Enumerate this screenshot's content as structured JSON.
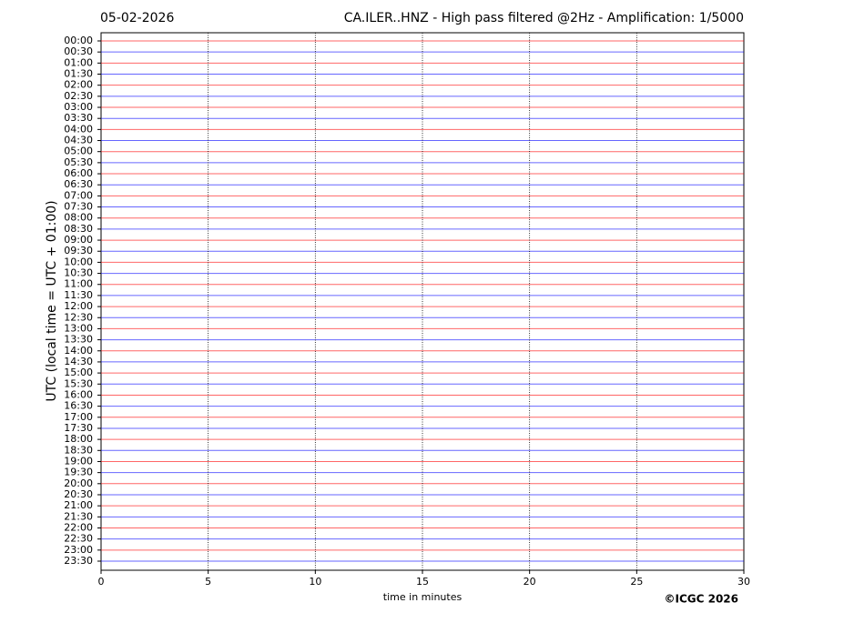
{
  "chart_data": {
    "type": "helicorder",
    "date": "05-02-2026",
    "title": "CA.ILER..HNZ - High pass filtered @2Hz - Amplification: 1/5000",
    "ylabel": "UTC (local time = UTC + 01:00)",
    "xlabel": "time in minutes",
    "credit": "©ICGC 2026",
    "categories": [
      "00:00",
      "00:30",
      "01:00",
      "01:30",
      "02:00",
      "02:30",
      "03:00",
      "03:30",
      "04:00",
      "04:30",
      "05:00",
      "05:30",
      "06:00",
      "06:30",
      "07:00",
      "07:30",
      "08:00",
      "08:30",
      "09:00",
      "09:30",
      "10:00",
      "10:30",
      "11:00",
      "11:30",
      "12:00",
      "12:30",
      "13:00",
      "13:30",
      "14:00",
      "14:30",
      "15:00",
      "15:30",
      "16:00",
      "16:30",
      "17:00",
      "17:30",
      "18:00",
      "18:30",
      "19:00",
      "19:30",
      "20:00",
      "20:30",
      "21:00",
      "21:30",
      "22:00",
      "22:30",
      "23:00",
      "23:30"
    ],
    "trace_colors": [
      "#ff0000",
      "#0000ff"
    ],
    "xlim": [
      0,
      30
    ],
    "xticks": [
      0,
      5,
      10,
      15,
      20,
      25,
      30
    ],
    "grid": true
  }
}
